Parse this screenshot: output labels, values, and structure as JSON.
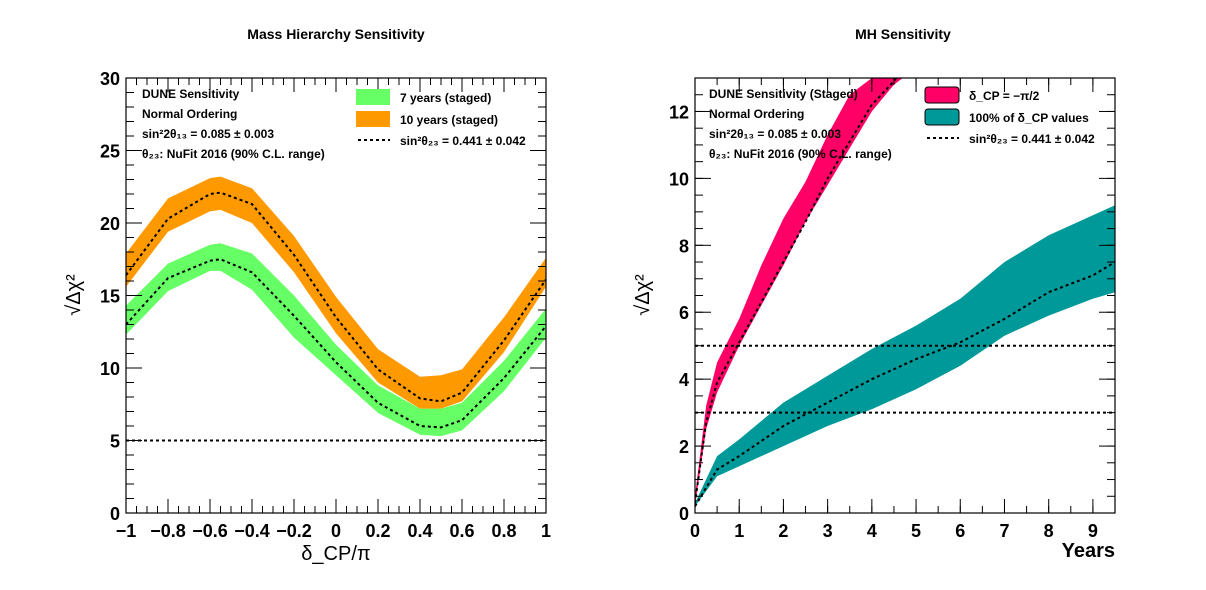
{
  "chart_data": [
    {
      "type": "area",
      "title": "Mass Hierarchy Sensitivity",
      "xlabel": "δ_CP/π",
      "ylabel": "√Δχ²",
      "xlim": [
        -1,
        1
      ],
      "ylim": [
        0,
        30
      ],
      "xticks": [
        "−1",
        "−0.8",
        "−0.6",
        "−0.4",
        "−0.2",
        "0",
        "0.2",
        "0.4",
        "0.6",
        "0.8",
        "1"
      ],
      "yticks": [
        "0",
        "5",
        "10",
        "15",
        "20",
        "25",
        "30"
      ],
      "info_lines": [
        "DUNE Sensitivity",
        "Normal Ordering",
        "sin²2θ₁₃ = 0.085 ± 0.003",
        "θ₂₃: NuFit 2016 (90% C.L. range)"
      ],
      "x": [
        -1.0,
        -0.8,
        -0.6,
        -0.55,
        -0.4,
        -0.2,
        0.0,
        0.2,
        0.4,
        0.5,
        0.6,
        0.8,
        1.0
      ],
      "series": [
        {
          "name": "7 years (staged)",
          "color": "#66ff66",
          "lower": [
            12.3,
            15.3,
            16.7,
            16.7,
            15.4,
            12.1,
            9.5,
            6.9,
            5.4,
            5.3,
            5.7,
            8.4,
            12.1
          ],
          "center": [
            13.0,
            16.2,
            17.4,
            17.5,
            16.6,
            13.6,
            10.4,
            7.6,
            6.0,
            5.9,
            6.4,
            9.3,
            12.9
          ],
          "upper": [
            14.3,
            17.2,
            18.5,
            18.6,
            17.9,
            15.0,
            11.6,
            8.8,
            7.2,
            7.2,
            7.6,
            10.5,
            14.1
          ]
        },
        {
          "name": "10 years (staged)",
          "color": "#ff9900",
          "lower": [
            15.6,
            19.4,
            20.8,
            20.9,
            20.0,
            16.6,
            12.4,
            9.0,
            7.2,
            7.2,
            7.7,
            11.1,
            15.6
          ],
          "center": [
            16.4,
            20.3,
            22.0,
            22.1,
            21.3,
            17.8,
            13.5,
            9.9,
            7.9,
            7.7,
            8.3,
            11.9,
            16.1
          ],
          "upper": [
            17.9,
            21.7,
            23.1,
            23.2,
            22.4,
            19.1,
            14.9,
            11.3,
            9.4,
            9.5,
            9.9,
            13.5,
            17.6
          ]
        }
      ],
      "dashed_center_label": "sin²θ₂₃ = 0.441 ± 0.042",
      "reference_lines": [
        5
      ]
    },
    {
      "type": "area",
      "title": "MH Sensitivity",
      "xlabel": "Years",
      "ylabel": "√Δχ²",
      "xlim": [
        0,
        9.5
      ],
      "ylim": [
        0,
        13
      ],
      "xticks": [
        "0",
        "1",
        "2",
        "3",
        "4",
        "5",
        "6",
        "7",
        "8",
        "9"
      ],
      "yticks": [
        "0",
        "2",
        "4",
        "6",
        "8",
        "10",
        "12"
      ],
      "info_lines": [
        "DUNE Sensitivity (Staged)",
        "Normal Ordering",
        "sin²2θ₁₃ = 0.085 ± 0.003",
        "θ₂₃: NuFit 2016 (90% C.L. range)"
      ],
      "series": [
        {
          "name": "δ_CP = −π/2",
          "color": "#ff0066",
          "x": [
            0.0,
            0.25,
            0.5,
            1.0,
            1.5,
            2.0,
            2.5,
            3.0,
            3.5,
            4.0,
            4.5,
            4.7
          ],
          "lower": [
            0.2,
            2.5,
            3.6,
            5.0,
            6.2,
            7.4,
            8.7,
            9.8,
            10.9,
            12.0,
            12.8,
            13.0
          ],
          "center": [
            0.3,
            2.7,
            3.9,
            5.1,
            6.3,
            7.5,
            8.7,
            10.0,
            11.1,
            12.2,
            12.9,
            13.3
          ],
          "upper": [
            0.5,
            3.2,
            4.5,
            5.8,
            7.4,
            8.8,
            9.9,
            11.3,
            12.5,
            13.0,
            13.0,
            13.0
          ]
        },
        {
          "name": "100% of δ_CP values",
          "color": "#009999",
          "x": [
            0.0,
            0.5,
            1.0,
            2.0,
            3.0,
            4.0,
            5.0,
            6.0,
            7.0,
            8.0,
            9.0,
            9.5
          ],
          "lower": [
            0.2,
            1.1,
            1.4,
            2.0,
            2.6,
            3.1,
            3.7,
            4.4,
            5.3,
            5.9,
            6.4,
            6.6
          ],
          "center": [
            0.2,
            1.3,
            1.7,
            2.6,
            3.3,
            4.0,
            4.6,
            5.1,
            5.8,
            6.6,
            7.1,
            7.5
          ],
          "upper": [
            0.3,
            1.7,
            2.2,
            3.3,
            4.1,
            4.9,
            5.6,
            6.4,
            7.5,
            8.3,
            8.9,
            9.2
          ]
        }
      ],
      "dashed_center_label": "sin²θ₂₃ = 0.441 ± 0.042",
      "reference_lines": [
        3,
        5
      ]
    }
  ]
}
